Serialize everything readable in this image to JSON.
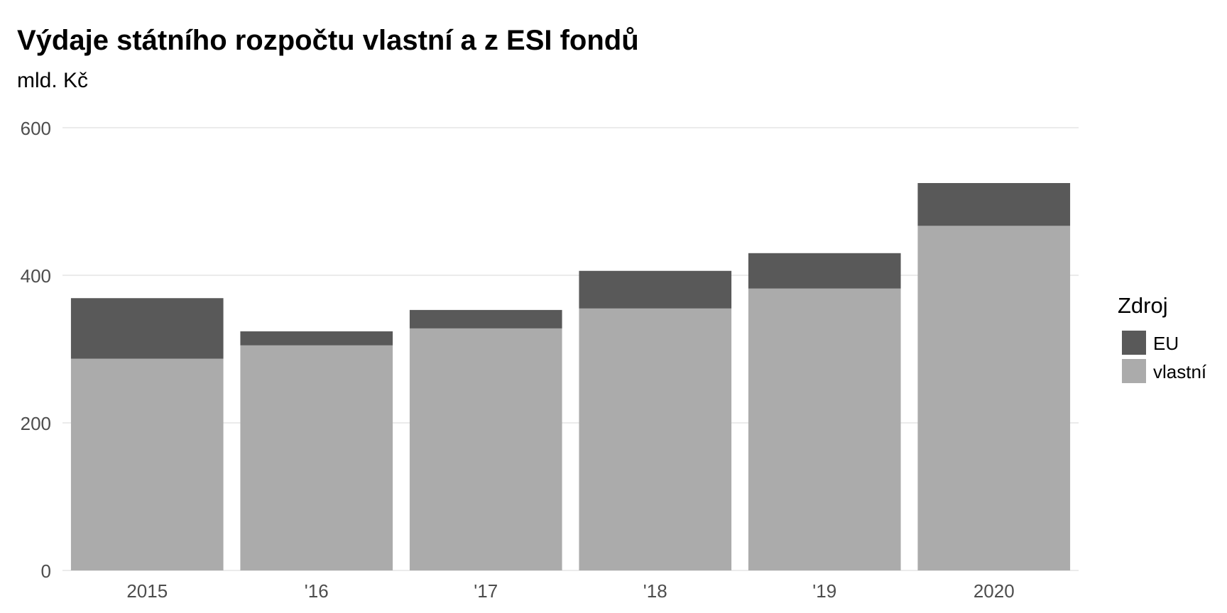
{
  "chart_data": {
    "type": "bar",
    "stacked": true,
    "title": "Výdaje státního rozpočtu vlastní a z ESI fondů",
    "subtitle": "mld. Kč",
    "xlabel": "",
    "ylabel": "",
    "categories": [
      "2015",
      "'16",
      "'17",
      "'18",
      "'19",
      "2020"
    ],
    "series": [
      {
        "name": "vlastní",
        "color": "#ababab",
        "values": [
          287,
          305,
          328,
          355,
          382,
          467
        ]
      },
      {
        "name": "EU",
        "color": "#595959",
        "values": [
          82,
          19,
          25,
          51,
          48,
          58
        ]
      }
    ],
    "ylim": [
      0,
      600
    ],
    "yticks": [
      0,
      200,
      400,
      600
    ],
    "ytick_labels": [
      "0",
      "200",
      "400",
      "600"
    ],
    "grid": true,
    "legend": {
      "title": "Zdroj",
      "position": "right",
      "entries": [
        "EU",
        "vlastní"
      ]
    }
  }
}
